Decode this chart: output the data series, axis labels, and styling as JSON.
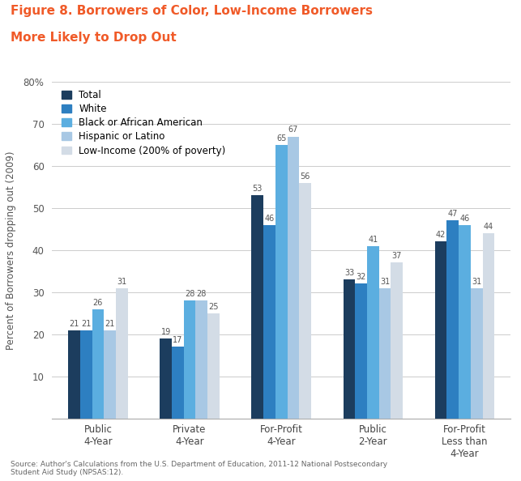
{
  "title_line1": "Figure 8. Borrowers of Color, Low-Income Borrowers",
  "title_line2": "More Likely to Drop Out",
  "title_color": "#f05a28",
  "categories": [
    "Public\n4-Year",
    "Private\n4-Year",
    "For-Profit\n4-Year",
    "Public\n2-Year",
    "For-Profit\nLess than\n4-Year"
  ],
  "series": [
    {
      "label": "Total",
      "color": "#1c3d5e",
      "values": [
        21,
        19,
        53,
        33,
        42
      ]
    },
    {
      "label": "White",
      "color": "#2d7fc1",
      "values": [
        21,
        17,
        46,
        32,
        47
      ]
    },
    {
      "label": "Black or African American",
      "color": "#5baee0",
      "values": [
        26,
        28,
        65,
        41,
        46
      ]
    },
    {
      "label": "Hispanic or Latino",
      "color": "#a8c8e4",
      "values": [
        21,
        28,
        67,
        31,
        31
      ]
    },
    {
      "label": "Low-Income (200% of poverty)",
      "color": "#d3dce6",
      "values": [
        31,
        25,
        56,
        37,
        44
      ]
    }
  ],
  "ylabel": "Percent of Borrowers dropping out (2009)",
  "ylim": [
    0,
    80
  ],
  "yticks": [
    0,
    10,
    20,
    30,
    40,
    50,
    60,
    70,
    80
  ],
  "ytick_labels": [
    "",
    "10",
    "20",
    "30",
    "40",
    "50",
    "60",
    "70",
    "80%"
  ],
  "background_color": "#ffffff",
  "grid_color": "#cccccc",
  "source_text": "Source: Author's Calculations from the U.S. Department of Education, 2011-12 National Postsecondary\nStudent Aid Study (NPSAS:12).",
  "bar_width": 0.13,
  "value_fontsize": 7,
  "legend_fontsize": 8.5,
  "ylabel_fontsize": 8.5,
  "source_fontsize": 6.5,
  "title_fontsize": 11
}
